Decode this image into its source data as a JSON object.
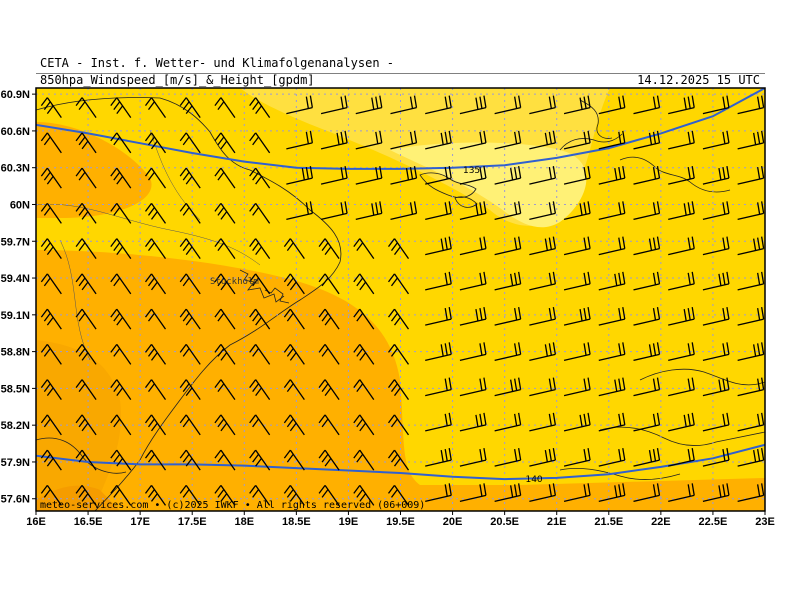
{
  "header": {
    "institute": "CETA - Inst. f. Wetter- und Klimafolgenanalysen -",
    "product": "850hpa_Windspeed_[m/s]_&_Height_[gpdm]",
    "datetime": "14.12.2025 15 UTC"
  },
  "footer": {
    "credit": "meteo-services.com • (c)2025 IWKF • All rights reserved (06+009)"
  },
  "map": {
    "lon_range": [
      16,
      23
    ],
    "lat_range": [
      57.5,
      60.95
    ],
    "lat_labels": [
      "60.9N",
      "60.6N",
      "60.3N",
      "60N",
      "59.7N",
      "59.4N",
      "59.1N",
      "58.8N",
      "58.5N",
      "58.2N",
      "57.9N",
      "57.6N"
    ],
    "lat_values": [
      60.9,
      60.6,
      60.3,
      60.0,
      59.7,
      59.4,
      59.1,
      58.8,
      58.5,
      58.2,
      57.9,
      57.6
    ],
    "lon_labels": [
      "16E",
      "16.5E",
      "17E",
      "17.5E",
      "18E",
      "18.5E",
      "19E",
      "19.5E",
      "20E",
      "20.5E",
      "21E",
      "21.5E",
      "22E",
      "22.5E",
      "23E"
    ],
    "lon_values": [
      16,
      16.5,
      17,
      17.5,
      18,
      18.5,
      19,
      19.5,
      20,
      20.5,
      21,
      21.5,
      22,
      22.5,
      23
    ],
    "contour_labels": [
      "135",
      "140"
    ],
    "city_label": "Stockholm",
    "colors": {
      "light_yellow": "#fff176",
      "yellow": "#ffd700",
      "orange": "#ffb000",
      "dark_orange": "#f59c00",
      "height_contour": "#3060d0",
      "wind_barb": "#000000",
      "grid": "#9a9ad8"
    }
  }
}
